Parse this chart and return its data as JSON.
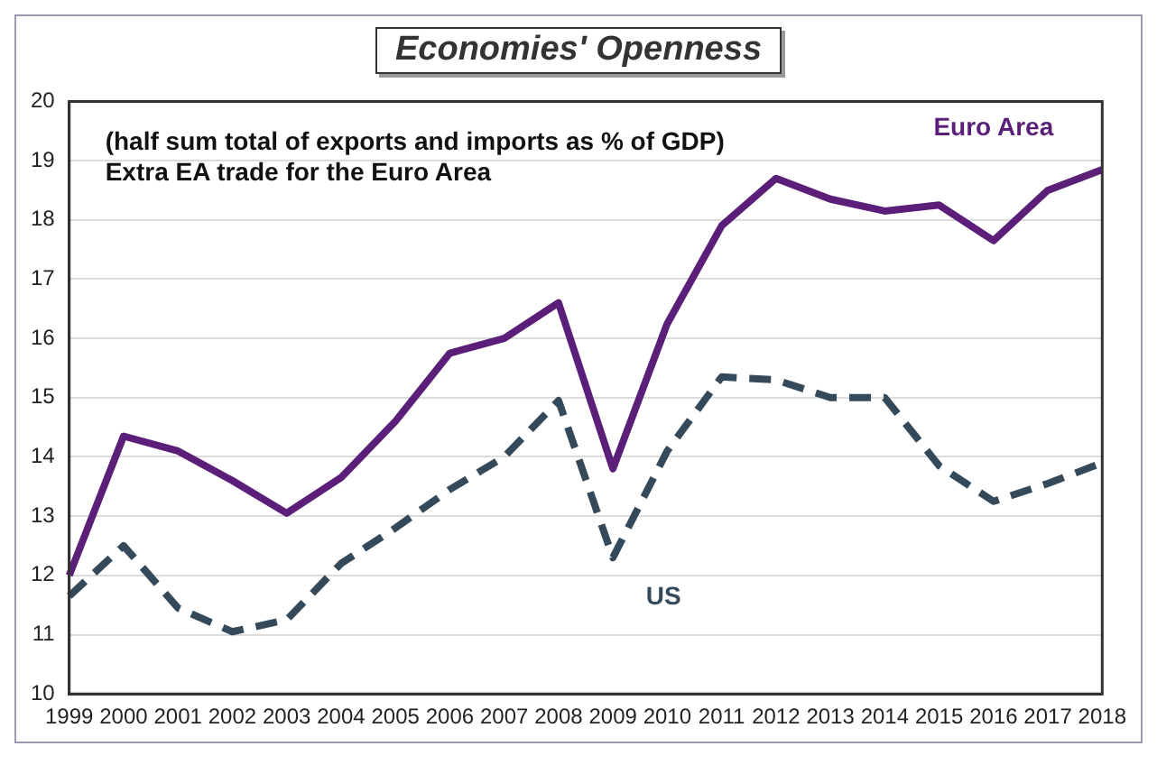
{
  "chart_data": {
    "type": "line",
    "title": "Economies' Openness",
    "annotations": [
      "(half sum total of exports and imports as % of GDP)",
      "Extra EA trade for the Euro Area"
    ],
    "categories": [
      "1999",
      "2000",
      "2001",
      "2002",
      "2003",
      "2004",
      "2005",
      "2006",
      "2007",
      "2008",
      "2009",
      "2010",
      "2011",
      "2012",
      "2013",
      "2014",
      "2015",
      "2016",
      "2017",
      "2018"
    ],
    "series": [
      {
        "name": "Euro Area",
        "color": "#5b1f7a",
        "line_style": "solid",
        "values": [
          12.0,
          14.35,
          14.1,
          13.6,
          13.05,
          13.65,
          14.6,
          15.75,
          16.0,
          16.6,
          13.8,
          16.25,
          17.9,
          18.7,
          18.35,
          18.15,
          18.25,
          17.65,
          18.5,
          18.85
        ]
      },
      {
        "name": "US",
        "color": "#34495a",
        "line_style": "dashed",
        "values": [
          11.65,
          12.5,
          11.45,
          11.05,
          11.25,
          12.2,
          12.8,
          13.45,
          14.0,
          14.95,
          12.3,
          14.1,
          15.35,
          15.3,
          15.0,
          15.0,
          13.85,
          13.25,
          13.55,
          13.9
        ]
      }
    ],
    "ylim": [
      10,
      20
    ],
    "yticks": [
      10,
      11,
      12,
      13,
      14,
      15,
      16,
      17,
      18,
      19,
      20
    ],
    "grid": "y",
    "legend": false,
    "marker": "none"
  }
}
